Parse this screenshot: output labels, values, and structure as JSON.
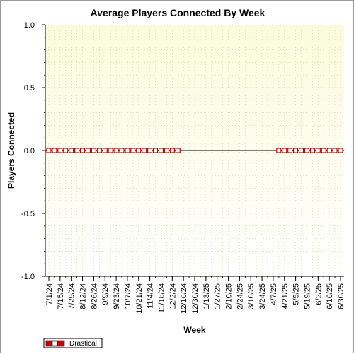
{
  "chart_data": {
    "type": "line",
    "title": "Average Players Connected By Week",
    "xlabel": "Week",
    "ylabel": "Players Connected",
    "ylim": [
      -1.0,
      1.0
    ],
    "yticks": [
      "1.0",
      "0.5",
      "0.0",
      "-0.5",
      "-1.0"
    ],
    "grid": true,
    "legend_position": "bottom-left",
    "x_tick_labels": [
      "7/1/24",
      "7/15/24",
      "7/29/24",
      "8/12/24",
      "8/26/24",
      "9/9/24",
      "9/23/24",
      "10/7/24",
      "10/21/24",
      "11/4/24",
      "11/18/24",
      "12/2/24",
      "12/16/24",
      "12/30/24",
      "1/13/25",
      "1/27/25",
      "2/10/25",
      "2/24/25",
      "3/10/25",
      "3/24/25",
      "4/7/25",
      "4/21/25",
      "5/5/25",
      "5/19/25",
      "6/2/25",
      "6/16/25",
      "6/30/25"
    ],
    "x": [
      "7/1/24",
      "7/8/24",
      "7/15/24",
      "7/22/24",
      "7/29/24",
      "8/5/24",
      "8/12/24",
      "8/19/24",
      "8/26/24",
      "9/2/24",
      "9/9/24",
      "9/16/24",
      "9/23/24",
      "9/30/24",
      "10/7/24",
      "10/14/24",
      "10/21/24",
      "10/28/24",
      "11/4/24",
      "11/11/24",
      "11/18/24",
      "11/25/24",
      "12/2/24",
      "12/9/24",
      "12/16/24",
      "12/23/24",
      "12/30/24",
      "1/6/25",
      "1/13/25",
      "1/20/25",
      "1/27/25",
      "2/3/25",
      "2/10/25",
      "2/17/25",
      "2/24/25",
      "3/3/25",
      "3/10/25",
      "3/17/25",
      "3/24/25",
      "3/31/25",
      "4/7/25",
      "4/14/25",
      "4/21/25",
      "4/28/25",
      "5/5/25",
      "5/12/25",
      "5/19/25",
      "5/26/25",
      "6/2/25",
      "6/9/25",
      "6/16/25",
      "6/23/25",
      "6/30/25"
    ],
    "series": [
      {
        "name": "Drastical",
        "color": "#cc0000",
        "values": [
          0,
          0,
          0,
          0,
          0,
          0,
          0,
          0,
          0,
          0,
          0,
          0,
          0,
          0,
          0,
          0,
          0,
          0,
          0,
          0,
          0,
          0,
          0,
          0,
          null,
          null,
          null,
          null,
          null,
          null,
          null,
          null,
          null,
          null,
          null,
          null,
          null,
          null,
          null,
          null,
          null,
          0,
          0,
          0,
          0,
          0,
          0,
          0,
          0,
          0,
          0,
          0,
          0
        ]
      }
    ],
    "plot_bg_top": "#fbfbdc",
    "plot_bg_bottom": "#ffffff"
  }
}
